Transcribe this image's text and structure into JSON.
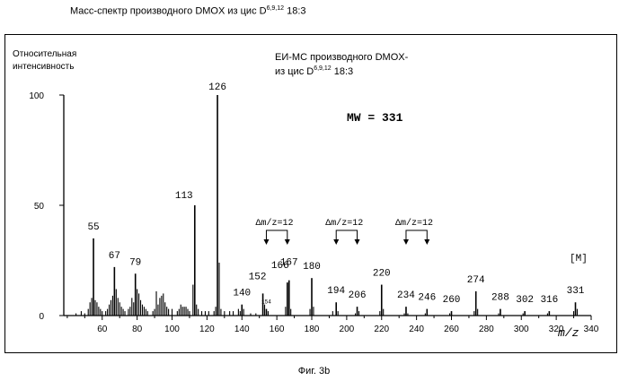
{
  "figure_title": {
    "text": "Масс-спектр производного DMOX из цис D",
    "sup": "6,9,12",
    "tail": " 18:3"
  },
  "figure_caption": "Фиг. 3b",
  "chart_data": {
    "type": "bar",
    "ylabel_line1": "Относительная",
    "ylabel_line2": "интенсивность",
    "xlabel": "m/z",
    "inner_title_line1": "ЕИ-МС производного DMOX-",
    "inner_title_line2_pre": "из цис D",
    "inner_title_line2_sup": "6,9,12",
    "inner_title_line2_post": " 18:3",
    "mw_label": "MW = 331",
    "molecular_ion_label": "[M]",
    "xlim": [
      38,
      340
    ],
    "ylim": [
      0,
      100
    ],
    "x_ticks": [
      60,
      80,
      100,
      120,
      140,
      160,
      180,
      200,
      220,
      240,
      260,
      280,
      300,
      320,
      340
    ],
    "y_ticks": [
      0,
      50,
      100
    ],
    "labeled_peaks": [
      {
        "mz": 55,
        "intensity": 35,
        "label": "55"
      },
      {
        "mz": 67,
        "intensity": 22,
        "label": "67"
      },
      {
        "mz": 79,
        "intensity": 19,
        "label": "79"
      },
      {
        "mz": 113,
        "intensity": 50,
        "label": "113"
      },
      {
        "mz": 126,
        "intensity": 100,
        "label": "126"
      },
      {
        "mz": 140,
        "intensity": 5,
        "label": "140"
      },
      {
        "mz": 152,
        "intensity": 10,
        "label": "152"
      },
      {
        "mz": 154,
        "intensity": 3,
        "label": "154"
      },
      {
        "mz": 166,
        "intensity": 15,
        "label": "166"
      },
      {
        "mz": 167,
        "intensity": 16,
        "label": "167"
      },
      {
        "mz": 180,
        "intensity": 17,
        "label": "180"
      },
      {
        "mz": 194,
        "intensity": 6,
        "label": "194"
      },
      {
        "mz": 206,
        "intensity": 4,
        "label": "206"
      },
      {
        "mz": 220,
        "intensity": 14,
        "label": "220"
      },
      {
        "mz": 234,
        "intensity": 4,
        "label": "234"
      },
      {
        "mz": 246,
        "intensity": 3,
        "label": "246"
      },
      {
        "mz": 260,
        "intensity": 2,
        "label": "260"
      },
      {
        "mz": 274,
        "intensity": 11,
        "label": "274"
      },
      {
        "mz": 288,
        "intensity": 3,
        "label": "288"
      },
      {
        "mz": 302,
        "intensity": 2,
        "label": "302"
      },
      {
        "mz": 316,
        "intensity": 2,
        "label": "316"
      },
      {
        "mz": 331,
        "intensity": 6,
        "label": "331"
      }
    ],
    "minor_peaks": [
      {
        "mz": 45,
        "intensity": 1
      },
      {
        "mz": 48,
        "intensity": 2
      },
      {
        "mz": 50,
        "intensity": 1
      },
      {
        "mz": 52,
        "intensity": 3
      },
      {
        "mz": 53,
        "intensity": 6
      },
      {
        "mz": 54,
        "intensity": 8
      },
      {
        "mz": 56,
        "intensity": 7
      },
      {
        "mz": 57,
        "intensity": 6
      },
      {
        "mz": 58,
        "intensity": 4
      },
      {
        "mz": 59,
        "intensity": 3
      },
      {
        "mz": 60,
        "intensity": 2
      },
      {
        "mz": 62,
        "intensity": 2
      },
      {
        "mz": 63,
        "intensity": 3
      },
      {
        "mz": 64,
        "intensity": 5
      },
      {
        "mz": 65,
        "intensity": 7
      },
      {
        "mz": 66,
        "intensity": 9
      },
      {
        "mz": 68,
        "intensity": 12
      },
      {
        "mz": 69,
        "intensity": 8
      },
      {
        "mz": 70,
        "intensity": 6
      },
      {
        "mz": 71,
        "intensity": 4
      },
      {
        "mz": 72,
        "intensity": 3
      },
      {
        "mz": 73,
        "intensity": 2
      },
      {
        "mz": 75,
        "intensity": 3
      },
      {
        "mz": 76,
        "intensity": 4
      },
      {
        "mz": 77,
        "intensity": 8
      },
      {
        "mz": 78,
        "intensity": 6
      },
      {
        "mz": 80,
        "intensity": 12
      },
      {
        "mz": 81,
        "intensity": 10
      },
      {
        "mz": 82,
        "intensity": 7
      },
      {
        "mz": 83,
        "intensity": 5
      },
      {
        "mz": 84,
        "intensity": 4
      },
      {
        "mz": 85,
        "intensity": 3
      },
      {
        "mz": 86,
        "intensity": 2
      },
      {
        "mz": 89,
        "intensity": 2
      },
      {
        "mz": 90,
        "intensity": 3
      },
      {
        "mz": 91,
        "intensity": 11
      },
      {
        "mz": 92,
        "intensity": 5
      },
      {
        "mz": 93,
        "intensity": 8
      },
      {
        "mz": 94,
        "intensity": 9
      },
      {
        "mz": 95,
        "intensity": 10
      },
      {
        "mz": 96,
        "intensity": 6
      },
      {
        "mz": 97,
        "intensity": 4
      },
      {
        "mz": 98,
        "intensity": 3
      },
      {
        "mz": 100,
        "intensity": 3
      },
      {
        "mz": 103,
        "intensity": 2
      },
      {
        "mz": 104,
        "intensity": 3
      },
      {
        "mz": 105,
        "intensity": 5
      },
      {
        "mz": 106,
        "intensity": 4
      },
      {
        "mz": 107,
        "intensity": 4
      },
      {
        "mz": 108,
        "intensity": 4
      },
      {
        "mz": 109,
        "intensity": 3
      },
      {
        "mz": 110,
        "intensity": 2
      },
      {
        "mz": 112,
        "intensity": 14
      },
      {
        "mz": 114,
        "intensity": 5
      },
      {
        "mz": 115,
        "intensity": 3
      },
      {
        "mz": 117,
        "intensity": 2
      },
      {
        "mz": 119,
        "intensity": 2
      },
      {
        "mz": 121,
        "intensity": 2
      },
      {
        "mz": 124,
        "intensity": 2
      },
      {
        "mz": 125,
        "intensity": 4
      },
      {
        "mz": 127,
        "intensity": 24
      },
      {
        "mz": 128,
        "intensity": 3
      },
      {
        "mz": 130,
        "intensity": 2
      },
      {
        "mz": 133,
        "intensity": 2
      },
      {
        "mz": 135,
        "intensity": 2
      },
      {
        "mz": 138,
        "intensity": 3
      },
      {
        "mz": 139,
        "intensity": 2
      },
      {
        "mz": 141,
        "intensity": 3
      },
      {
        "mz": 145,
        "intensity": 1
      },
      {
        "mz": 148,
        "intensity": 1
      },
      {
        "mz": 153,
        "intensity": 5
      },
      {
        "mz": 155,
        "intensity": 2
      },
      {
        "mz": 165,
        "intensity": 4
      },
      {
        "mz": 168,
        "intensity": 3
      },
      {
        "mz": 179,
        "intensity": 3
      },
      {
        "mz": 181,
        "intensity": 4
      },
      {
        "mz": 192,
        "intensity": 2
      },
      {
        "mz": 195,
        "intensity": 2
      },
      {
        "mz": 205,
        "intensity": 1
      },
      {
        "mz": 207,
        "intensity": 2
      },
      {
        "mz": 219,
        "intensity": 2
      },
      {
        "mz": 221,
        "intensity": 3
      },
      {
        "mz": 233,
        "intensity": 1
      },
      {
        "mz": 235,
        "intensity": 1
      },
      {
        "mz": 245,
        "intensity": 1
      },
      {
        "mz": 259,
        "intensity": 1
      },
      {
        "mz": 273,
        "intensity": 2
      },
      {
        "mz": 275,
        "intensity": 3
      },
      {
        "mz": 287,
        "intensity": 1
      },
      {
        "mz": 301,
        "intensity": 1
      },
      {
        "mz": 315,
        "intensity": 1
      },
      {
        "mz": 330,
        "intensity": 2
      },
      {
        "mz": 332,
        "intensity": 3
      }
    ],
    "spacing_annotations": [
      {
        "label": "Δm/z=12",
        "from": 154,
        "to": 166
      },
      {
        "label": "Δm/z=12",
        "from": 194,
        "to": 206
      },
      {
        "label": "Δm/z=12",
        "from": 234,
        "to": 246
      }
    ]
  }
}
